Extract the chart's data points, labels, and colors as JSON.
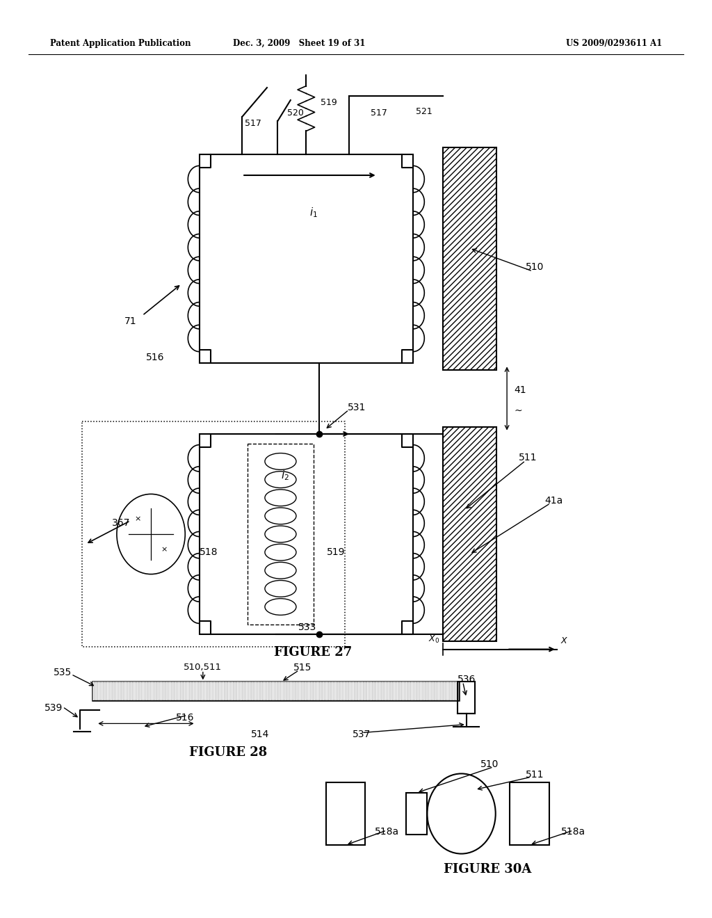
{
  "background_color": "#ffffff",
  "header_left": "Patent Application Publication",
  "header_middle": "Dec. 3, 2009   Sheet 19 of 31",
  "header_right": "US 2009/0293611 A1",
  "figure27_caption": "FIGURE 27",
  "figure28_caption": "FIGURE 28",
  "figure30a_caption": "FIGURE 30A"
}
